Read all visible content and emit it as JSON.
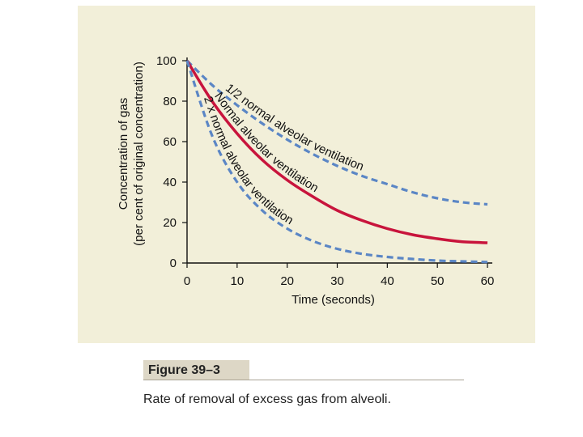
{
  "figure": {
    "label": "Figure 39–3",
    "caption": "Rate of removal of excess gas from alveoli."
  },
  "chart_data": {
    "type": "line",
    "xlabel": "Time (seconds)",
    "ylabel_line1": "Concentration of gas",
    "ylabel_line2": "(per cent of original concentration)",
    "xlim": [
      0,
      60
    ],
    "ylim": [
      0,
      100
    ],
    "x_ticks": [
      0,
      10,
      20,
      30,
      40,
      50,
      60
    ],
    "y_ticks": [
      0,
      20,
      40,
      60,
      80,
      100
    ],
    "grid": false,
    "series": [
      {
        "name": "1/2 normal alveolar ventilation",
        "style": "dashed",
        "color": "#5b86c5",
        "x": [
          0,
          5,
          10,
          15,
          20,
          25,
          30,
          35,
          40,
          45,
          50,
          55,
          60
        ],
        "y": [
          100,
          88,
          78,
          69,
          61,
          54,
          48,
          43,
          39,
          35,
          32,
          30,
          29
        ]
      },
      {
        "name": "Normal alveolar ventilation",
        "style": "solid",
        "color": "#c8143c",
        "x": [
          0,
          5,
          10,
          15,
          20,
          25,
          30,
          35,
          40,
          45,
          50,
          55,
          60
        ],
        "y": [
          100,
          80,
          64,
          51,
          41,
          33,
          26,
          21,
          17,
          14,
          12,
          10.5,
          10
        ]
      },
      {
        "name": "2 x normal alveolar ventilation",
        "style": "dashed",
        "color": "#5b86c5",
        "x": [
          0,
          5,
          10,
          15,
          20,
          25,
          30,
          35,
          40,
          45,
          50,
          55,
          60
        ],
        "y": [
          100,
          63,
          40,
          26,
          17,
          11,
          7,
          4.5,
          3,
          2,
          1.2,
          0.8,
          0.5
        ]
      }
    ]
  }
}
